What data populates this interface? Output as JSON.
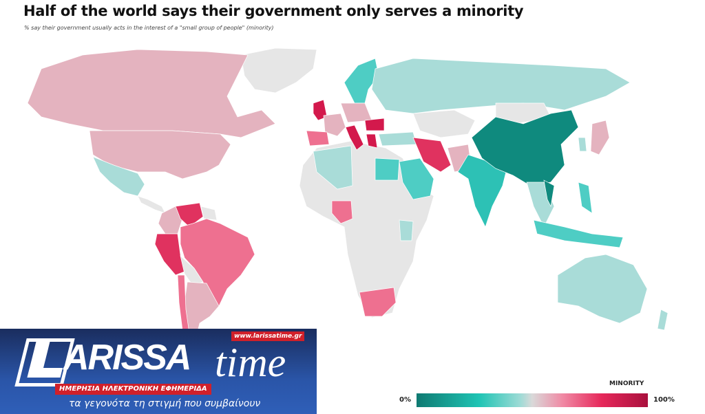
{
  "header": {
    "title": "Half of the world says their government only serves a minority",
    "subtitle": "% say their government usually acts in the interest of a \"small group of people\" (minority)"
  },
  "legend": {
    "title": "MINORITY",
    "min_label": "0%",
    "max_label": "100%",
    "colors": [
      "#0f7a72",
      "#1ec4b4",
      "#d9d9d9",
      "#e6285a",
      "#a9103d"
    ]
  },
  "logo": {
    "brand": "LARISSA time",
    "url": "www.larissatime.gr",
    "tagline": "ΗΜΕΡΗΣΙΑ ΗΛΕΚΤΡΟΝΙΚΗ ΕΦΗΜΕΡΙΔΑ",
    "slogan": "τα γεγονότα τη στιγμή που συμβαίνουν"
  }
}
